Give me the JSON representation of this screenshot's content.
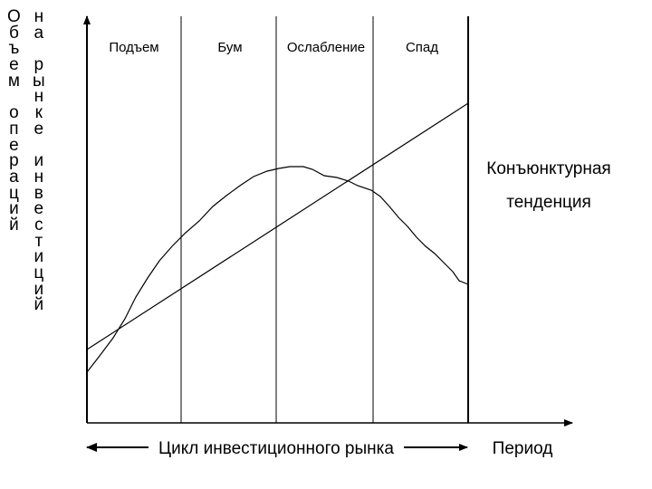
{
  "y_axis_label": {
    "column1": "Объем операций",
    "column2": "на рынке инвестиций"
  },
  "phases": [
    "Подъем",
    "Бум",
    "Ослабление",
    "Спад"
  ],
  "trend_label": {
    "line1": "Конъюнктурная",
    "line2": "тенденция"
  },
  "x_axis_label": "Цикл инвестиционного рынка",
  "period_label": "Период",
  "colors": {
    "ink": "#000000",
    "background": "#ffffff"
  }
}
